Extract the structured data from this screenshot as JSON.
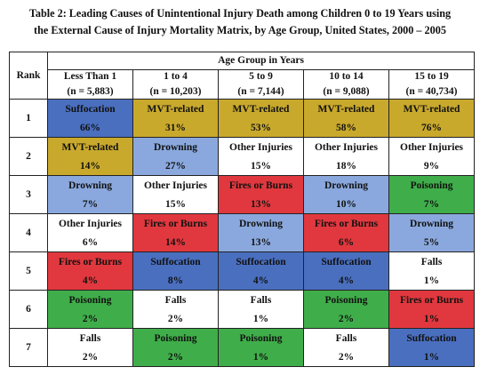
{
  "caption": {
    "line1": "Table 2: Leading Causes of Unintentional Injury Death among Children 0 to 19 Years using",
    "line2": "the External Cause of Injury Mortality Matrix, by Age Group, United States, 2000 – 2005"
  },
  "header": {
    "rank_label": "Rank",
    "group_title": "Age Group in Years",
    "groups": [
      {
        "label": "Less Than 1",
        "n": "(n = 5,883)"
      },
      {
        "label": "1 to 4",
        "n": "(n = 10,203)"
      },
      {
        "label": "5 to 9",
        "n": "(n = 7,144)"
      },
      {
        "label": "10 to 14",
        "n": "(n = 9,088)"
      },
      {
        "label": "15 to 19",
        "n": "(n = 40,734)"
      }
    ]
  },
  "colors": {
    "Suffocation": "#4a6fbf",
    "MVT-related": "#c9a92c",
    "Drowning": "#8aa8dd",
    "Other Injuries": "#ffffff",
    "Fires or Burns": "#e0383e",
    "Poisoning": "#3fae4a",
    "Falls": "#ffffff"
  },
  "rows": [
    {
      "rank": "1",
      "cells": [
        {
          "cause": "Suffocation",
          "pct": "66%"
        },
        {
          "cause": "MVT-related",
          "pct": "31%"
        },
        {
          "cause": "MVT-related",
          "pct": "53%"
        },
        {
          "cause": "MVT-related",
          "pct": "58%"
        },
        {
          "cause": "MVT-related",
          "pct": "76%"
        }
      ]
    },
    {
      "rank": "2",
      "cells": [
        {
          "cause": "MVT-related",
          "pct": "14%"
        },
        {
          "cause": "Drowning",
          "pct": "27%"
        },
        {
          "cause": "Other Injuries",
          "pct": "15%"
        },
        {
          "cause": "Other Injuries",
          "pct": "18%"
        },
        {
          "cause": "Other Injuries",
          "pct": "9%"
        }
      ]
    },
    {
      "rank": "3",
      "cells": [
        {
          "cause": "Drowning",
          "pct": "7%"
        },
        {
          "cause": "Other Injuries",
          "pct": "15%"
        },
        {
          "cause": "Fires or Burns",
          "pct": "13%"
        },
        {
          "cause": "Drowning",
          "pct": "10%"
        },
        {
          "cause": "Poisoning",
          "pct": "7%"
        }
      ]
    },
    {
      "rank": "4",
      "cells": [
        {
          "cause": "Other Injuries",
          "pct": "6%"
        },
        {
          "cause": "Fires or Burns",
          "pct": "14%"
        },
        {
          "cause": "Drowning",
          "pct": "13%"
        },
        {
          "cause": "Fires or Burns",
          "pct": "6%"
        },
        {
          "cause": "Drowning",
          "pct": "5%"
        }
      ]
    },
    {
      "rank": "5",
      "cells": [
        {
          "cause": "Fires or Burns",
          "pct": "4%"
        },
        {
          "cause": "Suffocation",
          "pct": "8%"
        },
        {
          "cause": "Suffocation",
          "pct": "4%"
        },
        {
          "cause": "Suffocation",
          "pct": "4%"
        },
        {
          "cause": "Falls",
          "pct": "1%"
        }
      ]
    },
    {
      "rank": "6",
      "cells": [
        {
          "cause": "Poisoning",
          "pct": "2%"
        },
        {
          "cause": "Falls",
          "pct": "2%"
        },
        {
          "cause": "Falls",
          "pct": "1%"
        },
        {
          "cause": "Poisoning",
          "pct": "2%"
        },
        {
          "cause": "Fires or Burns",
          "pct": "1%"
        }
      ]
    },
    {
      "rank": "7",
      "cells": [
        {
          "cause": "Falls",
          "pct": "2%"
        },
        {
          "cause": "Poisoning",
          "pct": "2%"
        },
        {
          "cause": "Poisoning",
          "pct": "1%"
        },
        {
          "cause": "Falls",
          "pct": "2%"
        },
        {
          "cause": "Suffocation",
          "pct": "1%"
        }
      ]
    }
  ]
}
